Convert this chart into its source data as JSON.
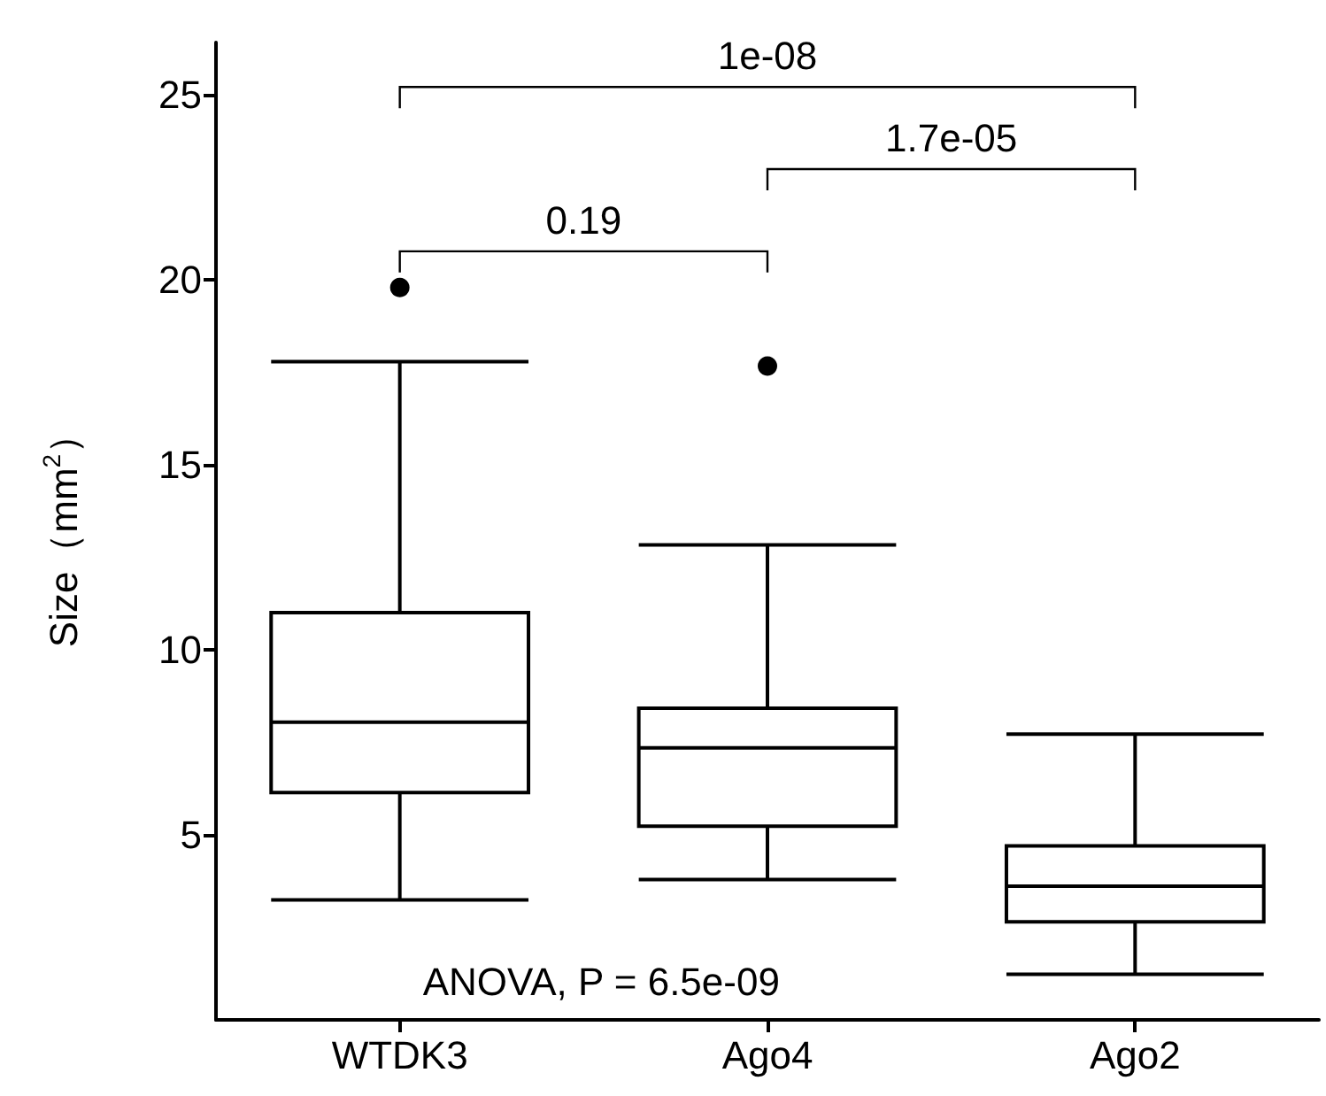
{
  "chart_data": {
    "type": "box",
    "ylabel": "Size（mm$^{2}$）",
    "categories": [
      "WTDK3",
      "Ago4",
      "Ago2"
    ],
    "boxes": [
      {
        "low": 3.24,
        "q1": 6.14,
        "median": 8.04,
        "q3": 11.0,
        "high": 17.78,
        "outliers": [
          19.78
        ]
      },
      {
        "low": 3.79,
        "q1": 5.23,
        "median": 7.35,
        "q3": 8.42,
        "high": 12.83,
        "outliers": [
          17.66
        ]
      },
      {
        "low": 1.23,
        "q1": 2.65,
        "median": 3.61,
        "q3": 4.7,
        "high": 7.72
      }
    ],
    "color": "#000000",
    "ylim": [
      0,
      26.4
    ],
    "yticks": [
      5,
      10,
      15,
      20,
      25
    ],
    "grid": false,
    "annotations": [
      "ANOVA, P = 6.5e-09",
      "0.19",
      "1.7e-05",
      "1e-08"
    ]
  }
}
